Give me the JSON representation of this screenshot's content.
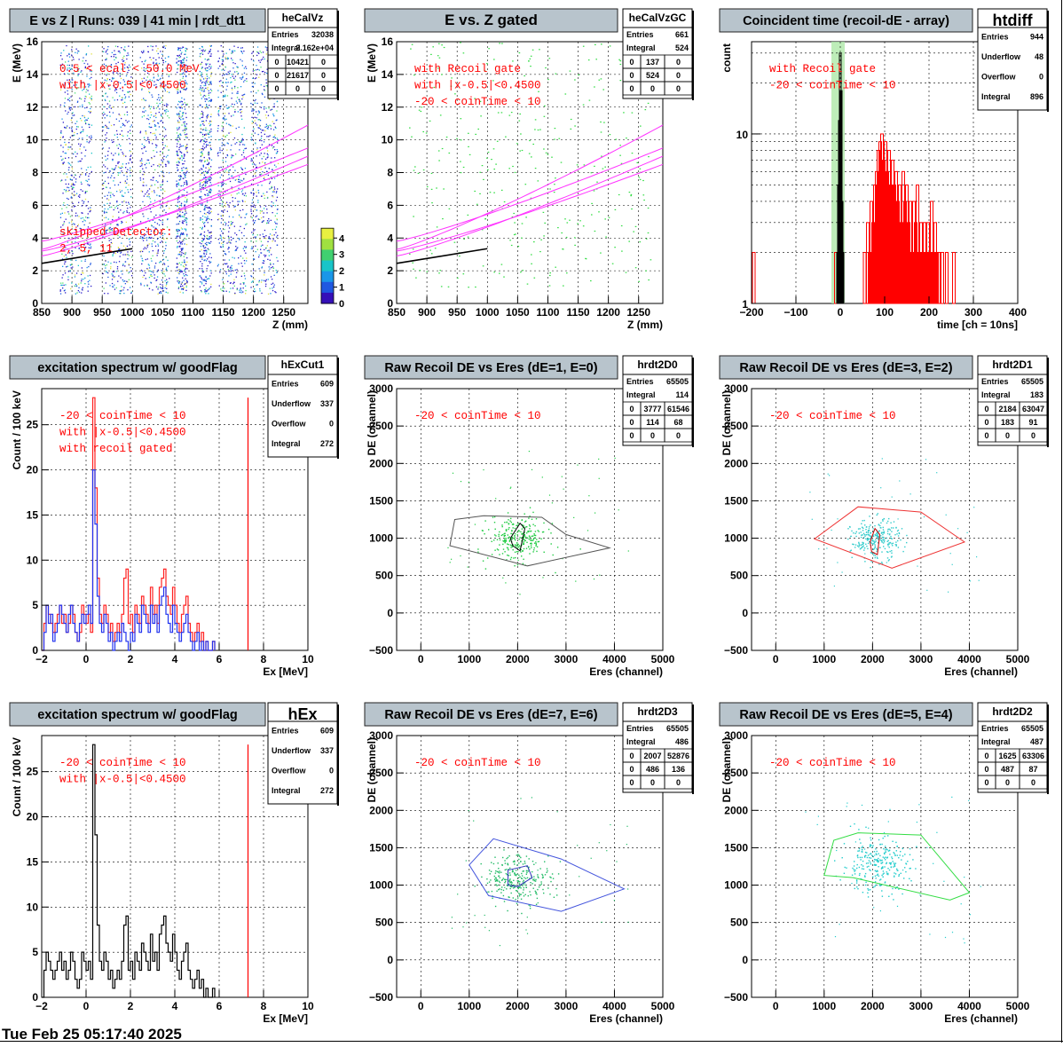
{
  "footer_date": "Tue Feb 25 05:17:40 2025",
  "colors": {
    "panel_title_bg": "#b8c4cc",
    "annotation": "#ff0000",
    "kinematic_line": "#ff33ff",
    "grid": "#000000",
    "time_gate": "#aee9a8"
  },
  "chart_data": [
    {
      "id": "p1",
      "type": "heatmap",
      "title": "E vs Z | Runs: 039 | 41 min | rdt_dt1",
      "xlabel": "Z (mm)",
      "ylabel": "E (MeV)",
      "xlim": [
        850,
        1290
      ],
      "ylim": [
        0,
        16
      ],
      "xticks": [
        850,
        900,
        950,
        1000,
        1050,
        1100,
        1150,
        1200,
        1250
      ],
      "yticks": [
        0,
        2,
        4,
        6,
        8,
        10,
        12,
        14,
        16
      ],
      "grid": true,
      "stats": {
        "name": "heCalVz",
        "rows": [
          [
            "Entries",
            "32038"
          ],
          [
            "Integral",
            "2.162e+04"
          ]
        ],
        "matrix": [
          [
            "0",
            "10421",
            "0"
          ],
          [
            "0",
            "21617",
            "0"
          ],
          [
            "0",
            "0",
            "0"
          ]
        ]
      },
      "annotations": [
        "0.5 < ecal < 50.0 MeV",
        "with |x-0.5|<0.4500",
        "skipped Detector:",
        "2,    5,    11"
      ],
      "colorbar": {
        "min": 0,
        "max": 4.6,
        "ticks": [
          0,
          1,
          2,
          3,
          4
        ]
      },
      "detector_bands": [
        [
          880,
          932
        ],
        [
          950,
          998
        ],
        [
          1012,
          1060
        ],
        [
          1072,
          1090
        ],
        [
          1110,
          1130
        ],
        [
          1140,
          1188
        ],
        [
          1195,
          1240
        ]
      ]
    },
    {
      "id": "p2",
      "type": "scatter",
      "title": "E vs. Z gated",
      "xlabel": "Z (mm)",
      "ylabel": "E (MeV)",
      "xlim": [
        850,
        1290
      ],
      "ylim": [
        0,
        16
      ],
      "xticks": [
        850,
        900,
        950,
        1000,
        1050,
        1100,
        1150,
        1200,
        1250
      ],
      "yticks": [
        0,
        2,
        4,
        6,
        8,
        10,
        12,
        14,
        16
      ],
      "grid": true,
      "stats": {
        "name": "heCalVzGC",
        "rows": [
          [
            "Entries",
            "661"
          ],
          [
            "Integral",
            "524"
          ]
        ],
        "matrix": [
          [
            "0",
            "137",
            "0"
          ],
          [
            "0",
            "524",
            "0"
          ],
          [
            "0",
            "0",
            "0"
          ]
        ]
      },
      "annotations": [
        "with Recoil gate",
        "with |x-0.5|<0.4500",
        "-20 < coinTime < 10"
      ]
    },
    {
      "id": "p3",
      "type": "bar",
      "title": "Coincident time (recoil-dE - array)",
      "xlabel": "time [ch = 10ns]",
      "ylabel": "count",
      "xlim": [
        -200,
        400
      ],
      "ylim": [
        1,
        35
      ],
      "log_y": true,
      "xticks": [
        -200,
        -100,
        0,
        100,
        200,
        300,
        400
      ],
      "yticks": [
        1,
        10
      ],
      "grid": true,
      "gate": [
        -20,
        10
      ],
      "stats": {
        "name": "htdiff",
        "rows": [
          [
            "Entries",
            "944"
          ],
          [
            "Underflow",
            "48"
          ],
          [
            "Overflow",
            "0"
          ],
          [
            "Integral",
            "896"
          ]
        ]
      },
      "annotations": [
        "with Recoil gate",
        "-20 < coinTime < 10"
      ],
      "black_peak": [
        [
          -8,
          1
        ],
        [
          -6,
          2
        ],
        [
          -4,
          5
        ],
        [
          -2,
          12
        ],
        [
          0,
          30
        ],
        [
          2,
          18
        ],
        [
          4,
          4
        ],
        [
          6,
          2
        ],
        [
          8,
          1
        ]
      ],
      "red_counts": [
        [
          -195,
          2
        ],
        [
          -20,
          1
        ],
        [
          -15,
          1
        ],
        [
          -10,
          2
        ],
        [
          15,
          1
        ],
        [
          40,
          1
        ],
        [
          55,
          2
        ],
        [
          62,
          3
        ],
        [
          66,
          2
        ],
        [
          70,
          4
        ],
        [
          74,
          3
        ],
        [
          78,
          5
        ],
        [
          82,
          6
        ],
        [
          86,
          8
        ],
        [
          90,
          9
        ],
        [
          94,
          10
        ],
        [
          98,
          7
        ],
        [
          102,
          9
        ],
        [
          106,
          6
        ],
        [
          110,
          8
        ],
        [
          114,
          5
        ],
        [
          118,
          7
        ],
        [
          122,
          5
        ],
        [
          126,
          6
        ],
        [
          130,
          4
        ],
        [
          134,
          5
        ],
        [
          138,
          3
        ],
        [
          142,
          6
        ],
        [
          146,
          4
        ],
        [
          150,
          5
        ],
        [
          154,
          3
        ],
        [
          158,
          4
        ],
        [
          162,
          2
        ],
        [
          166,
          4
        ],
        [
          170,
          3
        ],
        [
          174,
          5
        ],
        [
          178,
          2
        ],
        [
          182,
          3
        ],
        [
          186,
          2
        ],
        [
          190,
          3
        ],
        [
          194,
          2
        ],
        [
          198,
          3
        ],
        [
          202,
          2
        ],
        [
          206,
          4
        ],
        [
          210,
          2
        ],
        [
          214,
          3
        ],
        [
          218,
          2
        ],
        [
          222,
          2
        ],
        [
          226,
          1
        ],
        [
          230,
          2
        ],
        [
          234,
          1
        ],
        [
          240,
          2
        ],
        [
          248,
          1
        ],
        [
          256,
          2
        ],
        [
          262,
          1
        ],
        [
          275,
          1
        ],
        [
          290,
          1
        ],
        [
          310,
          1
        ]
      ]
    },
    {
      "id": "p4",
      "type": "bar",
      "title": "excitation spectrum w/ goodFlag",
      "xlabel": "Ex [MeV]",
      "ylabel": "Count / 100 keV",
      "xlim": [
        -2,
        10
      ],
      "ylim": [
        0,
        29
      ],
      "xticks": [
        -2,
        0,
        2,
        4,
        6,
        8,
        10
      ],
      "yticks": [
        0,
        5,
        10,
        15,
        20,
        25
      ],
      "grid": true,
      "marker_x": 7.3,
      "stats": {
        "name": "hExCut1",
        "rows": [
          [
            "Entries",
            "609"
          ],
          [
            "Underflow",
            "337"
          ],
          [
            "Overflow",
            "0"
          ],
          [
            "Integral",
            "272"
          ]
        ]
      },
      "annotations": [
        "-20 < coinTime < 10",
        "with |x-0.5|<0.4500",
        "with recoil gated"
      ],
      "bin_start": -2,
      "bin_width": 0.1,
      "blue_counts": [
        0,
        2,
        5,
        3,
        4,
        1,
        2,
        3,
        5,
        4,
        3,
        2,
        4,
        5,
        3,
        2,
        1,
        3,
        4,
        3,
        4,
        5,
        3,
        20,
        14,
        6,
        3,
        2,
        4,
        3,
        1,
        2,
        0,
        1,
        2,
        1,
        3,
        2,
        1,
        0,
        2,
        1,
        4,
        3,
        2,
        5,
        4,
        3,
        2,
        5,
        3,
        4,
        2,
        5,
        6,
        7,
        4,
        3,
        2,
        5,
        3,
        2,
        1,
        2,
        3,
        4,
        2,
        1,
        0,
        1,
        2,
        0,
        1,
        0,
        1,
        0,
        0,
        1
      ],
      "red_counts": [
        0,
        3,
        5,
        4,
        3,
        2,
        3,
        4,
        5,
        3,
        4,
        2,
        3,
        5,
        4,
        2,
        1,
        2,
        5,
        4,
        3,
        4,
        2,
        28,
        18,
        8,
        4,
        3,
        5,
        4,
        2,
        3,
        1,
        2,
        3,
        2,
        4,
        8,
        9,
        3,
        4,
        2,
        5,
        4,
        3,
        6,
        5,
        4,
        3,
        7,
        4,
        5,
        3,
        7,
        8,
        9,
        6,
        5,
        4,
        7,
        5,
        3,
        2,
        4,
        5,
        6,
        3,
        2,
        1,
        2,
        3,
        1,
        2,
        0,
        1,
        0,
        0,
        1
      ]
    },
    {
      "id": "p5",
      "type": "scatter",
      "title": "Raw Recoil DE vs Eres (dE=1, E=0)",
      "xlabel": "Eres (channel)",
      "ylabel": "DE (channel)",
      "xlim": [
        -500,
        5000
      ],
      "ylim": [
        -500,
        3000
      ],
      "xticks": [
        0,
        1000,
        2000,
        3000,
        4000,
        5000
      ],
      "yticks": [
        -500,
        0,
        500,
        1000,
        1500,
        2000,
        2500,
        3000
      ],
      "grid": true,
      "stats": {
        "name": "hrdt2D0",
        "rows": [
          [
            "Entries",
            "65505"
          ],
          [
            "Integral",
            "114"
          ]
        ],
        "matrix": [
          [
            "0",
            "3777",
            "61546"
          ],
          [
            "0",
            "114",
            "68"
          ],
          [
            "0",
            "0",
            "0"
          ]
        ]
      },
      "annotations": [
        "-20 < coinTime < 10"
      ],
      "cloud": {
        "cx": 2000,
        "cy": 1000,
        "sx": 300,
        "sy": 150,
        "color": "#22cc44"
      },
      "outer_cut": {
        "color": "#555555",
        "points": [
          [
            700,
            1250
          ],
          [
            1300,
            1300
          ],
          [
            2500,
            1280
          ],
          [
            3000,
            1050
          ],
          [
            3900,
            870
          ],
          [
            2200,
            630
          ],
          [
            600,
            900
          ]
        ]
      },
      "inner_cut": {
        "color": "#000000",
        "points": [
          [
            1850,
            1000
          ],
          [
            2050,
            1200
          ],
          [
            2150,
            1130
          ],
          [
            2050,
            830
          ],
          [
            1900,
            900
          ]
        ]
      }
    },
    {
      "id": "p6",
      "type": "scatter",
      "title": "Raw Recoil DE vs Eres (dE=3, E=2)",
      "xlabel": "Eres (channel)",
      "ylabel": "DE (channel)",
      "xlim": [
        -500,
        5000
      ],
      "ylim": [
        -500,
        3000
      ],
      "xticks": [
        0,
        1000,
        2000,
        3000,
        4000,
        5000
      ],
      "yticks": [
        -500,
        0,
        500,
        1000,
        1500,
        2000,
        2500,
        3000
      ],
      "grid": true,
      "stats": {
        "name": "hrdt2D1",
        "rows": [
          [
            "Entries",
            "65505"
          ],
          [
            "Integral",
            "183"
          ]
        ],
        "matrix": [
          [
            "0",
            "2184",
            "63047"
          ],
          [
            "0",
            "183",
            "91"
          ],
          [
            "0",
            "0",
            "0"
          ]
        ]
      },
      "annotations": [
        "-20 < coinTime < 10"
      ],
      "cloud": {
        "cx": 2050,
        "cy": 980,
        "sx": 250,
        "sy": 130,
        "color": "#33cccc"
      },
      "outer_cut": {
        "color": "#ee3333",
        "points": [
          [
            800,
            990
          ],
          [
            1700,
            1420
          ],
          [
            3000,
            1350
          ],
          [
            3900,
            950
          ],
          [
            2400,
            600
          ]
        ]
      },
      "inner_cut": {
        "color": "#cc0000",
        "points": [
          [
            1950,
            950
          ],
          [
            2050,
            1130
          ],
          [
            2150,
            1050
          ],
          [
            2100,
            780
          ],
          [
            1980,
            820
          ]
        ]
      }
    },
    {
      "id": "p7",
      "type": "bar",
      "title": "excitation spectrum w/ goodFlag",
      "xlabel": "Ex [MeV]",
      "ylabel": "Count / 100 keV",
      "xlim": [
        -2,
        10
      ],
      "ylim": [
        0,
        29
      ],
      "xticks": [
        -2,
        0,
        2,
        4,
        6,
        8,
        10
      ],
      "yticks": [
        0,
        5,
        10,
        15,
        20,
        25
      ],
      "grid": true,
      "marker_x": 7.3,
      "stats": {
        "name": "hEx",
        "rows": [
          [
            "Entries",
            "609"
          ],
          [
            "Underflow",
            "337"
          ],
          [
            "Overflow",
            "0"
          ],
          [
            "Integral",
            "272"
          ]
        ]
      },
      "annotations": [
        "-20 < coinTime < 10",
        "with |x-0.5|<0.4500"
      ],
      "bin_start": -2,
      "bin_width": 0.1,
      "black_counts": [
        0,
        3,
        5,
        4,
        3,
        2,
        3,
        4,
        5,
        3,
        4,
        2,
        3,
        5,
        4,
        2,
        1,
        2,
        5,
        4,
        3,
        4,
        2,
        28,
        18,
        8,
        4,
        3,
        5,
        4,
        2,
        3,
        1,
        2,
        3,
        2,
        4,
        8,
        9,
        3,
        4,
        2,
        5,
        4,
        3,
        6,
        5,
        4,
        3,
        7,
        4,
        5,
        3,
        7,
        8,
        9,
        6,
        5,
        4,
        7,
        5,
        3,
        2,
        4,
        5,
        6,
        3,
        2,
        1,
        2,
        3,
        1,
        2,
        0,
        1,
        0,
        0,
        1
      ]
    },
    {
      "id": "p8",
      "type": "scatter",
      "title": "Raw Recoil DE vs Eres (dE=7, E=6)",
      "xlabel": "Eres (channel)",
      "ylabel": "DE (channel)",
      "xlim": [
        -500,
        5000
      ],
      "ylim": [
        -500,
        3000
      ],
      "xticks": [
        0,
        1000,
        2000,
        3000,
        4000,
        5000
      ],
      "yticks": [
        -500,
        0,
        500,
        1000,
        1500,
        2000,
        2500,
        3000
      ],
      "grid": true,
      "stats": {
        "name": "hrdt2D3",
        "rows": [
          [
            "Entries",
            "65505"
          ],
          [
            "Integral",
            "486"
          ]
        ],
        "matrix": [
          [
            "0",
            "2007",
            "52876"
          ],
          [
            "0",
            "486",
            "136"
          ],
          [
            "0",
            "0",
            "0"
          ]
        ]
      },
      "annotations": [
        "-20 < coinTime < 10"
      ],
      "cloud": {
        "cx": 2000,
        "cy": 1100,
        "sx": 350,
        "sy": 160,
        "color": "#22bb66"
      },
      "outer_cut": {
        "color": "#4455dd",
        "points": [
          [
            1000,
            1270
          ],
          [
            1500,
            1620
          ],
          [
            2900,
            1350
          ],
          [
            4200,
            950
          ],
          [
            2900,
            650
          ],
          [
            1400,
            860
          ]
        ]
      },
      "inner_cut": {
        "color": "#3333bb",
        "points": [
          [
            1800,
            1200
          ],
          [
            2200,
            1260
          ],
          [
            2300,
            1100
          ],
          [
            2000,
            980
          ],
          [
            1800,
            1000
          ]
        ]
      }
    },
    {
      "id": "p9",
      "type": "scatter",
      "title": "Raw Recoil DE vs Eres (dE=5, E=4)",
      "xlabel": "Eres (channel)",
      "ylabel": "DE (channel)",
      "xlim": [
        -500,
        5000
      ],
      "ylim": [
        -500,
        3000
      ],
      "xticks": [
        0,
        1000,
        2000,
        3000,
        4000,
        5000
      ],
      "yticks": [
        -500,
        0,
        500,
        1000,
        1500,
        2000,
        2500,
        3000
      ],
      "grid": true,
      "stats": {
        "name": "hrdt2D2",
        "rows": [
          [
            "Entries",
            "65505"
          ],
          [
            "Integral",
            "487"
          ]
        ],
        "matrix": [
          [
            "0",
            "1625",
            "63306"
          ],
          [
            "0",
            "487",
            "87"
          ],
          [
            "0",
            "0",
            "0"
          ]
        ]
      },
      "annotations": [
        "-20 < coinTime < 10"
      ],
      "cloud": {
        "cx": 2050,
        "cy": 1280,
        "sx": 350,
        "sy": 180,
        "color": "#22cccc"
      },
      "outer_cut": {
        "color": "#33dd44",
        "points": [
          [
            1000,
            1130
          ],
          [
            1200,
            1600
          ],
          [
            1700,
            1700
          ],
          [
            3000,
            1670
          ],
          [
            4000,
            900
          ],
          [
            3600,
            800
          ],
          [
            1600,
            1100
          ]
        ]
      },
      "inner_cut": null
    }
  ]
}
